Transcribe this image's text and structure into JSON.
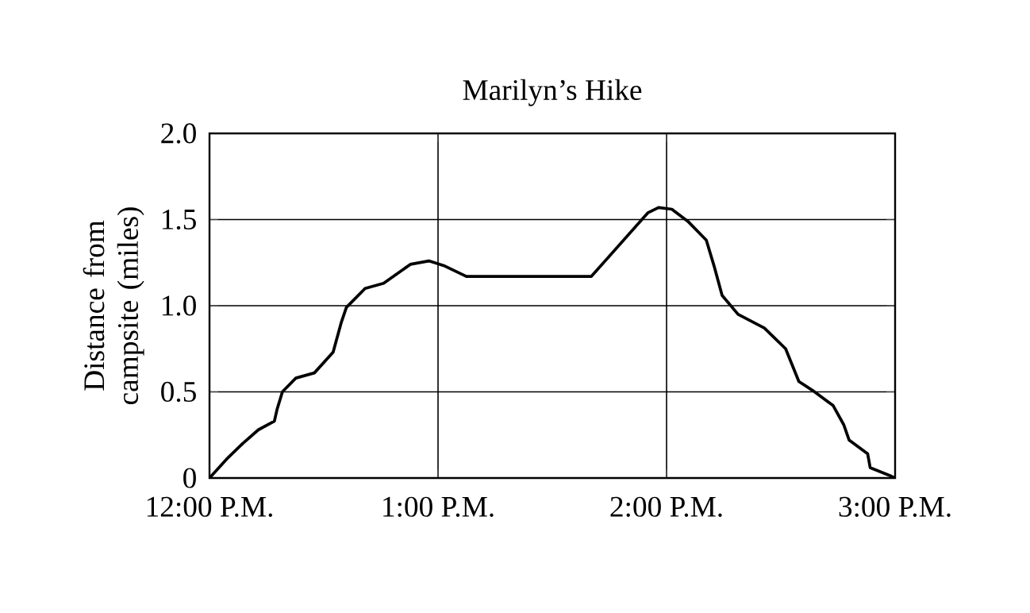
{
  "chart_data": {
    "type": "line",
    "title": "Marilyn’s Hike",
    "ylabel": "Distance from campsite (miles)",
    "xlim": [
      12,
      15
    ],
    "xticks": [
      {
        "value": 12,
        "label": "12:00 P.M."
      },
      {
        "value": 13,
        "label": "1:00 P.M."
      },
      {
        "value": 14,
        "label": "2:00 P.M."
      },
      {
        "value": 15,
        "label": "3:00 P.M."
      }
    ],
    "ylim": [
      0,
      2
    ],
    "yticks": [
      {
        "value": 0,
        "label": "0"
      },
      {
        "value": 0.5,
        "label": "0.5"
      },
      {
        "value": 1,
        "label": "1.0"
      },
      {
        "value": 1.5,
        "label": "1.5"
      },
      {
        "value": 2,
        "label": "2.0"
      }
    ],
    "grid": true,
    "marker": "none",
    "line_style": "solid",
    "series": [
      {
        "color": "#000000",
        "x": [
          12,
          12.075,
          12.145,
          12.214,
          12.284,
          12.296,
          12.319,
          12.378,
          12.459,
          12.541,
          12.576,
          12.599,
          12.681,
          12.762,
          12.879,
          12.96,
          13.03,
          13.124,
          13.671,
          13.919,
          13.965,
          14.023,
          14.093,
          14.174,
          14.208,
          14.243,
          14.313,
          14.428,
          14.521,
          14.579,
          14.637,
          14.729,
          14.775,
          14.799,
          14.88,
          14.891,
          14.984,
          15
        ],
        "values": [
          0,
          0.11,
          0.2,
          0.28,
          0.33,
          0.4,
          0.5,
          0.58,
          0.61,
          0.73,
          0.9,
          0.99,
          1.1,
          1.13,
          1.24,
          1.26,
          1.23,
          1.17,
          1.17,
          1.54,
          1.57,
          1.56,
          1.49,
          1.38,
          1.23,
          1.06,
          0.95,
          0.87,
          0.75,
          0.56,
          0.51,
          0.42,
          0.31,
          0.22,
          0.14,
          0.06,
          0.01,
          0
        ]
      }
    ]
  }
}
